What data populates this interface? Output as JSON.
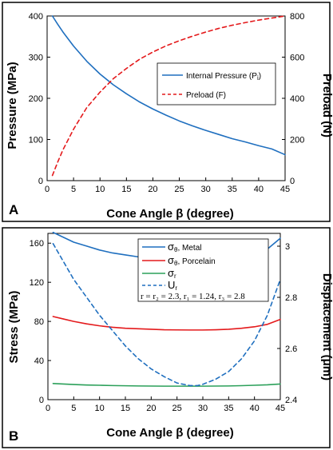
{
  "chart_data": [
    {
      "type": "line",
      "panel_label": "A",
      "xlabel": "Cone Angle β (degree)",
      "ylabel_left": "Pressure (MPa)",
      "ylabel_right": "Preload (N)",
      "xlim": [
        0,
        45
      ],
      "ylim_left": [
        0,
        400
      ],
      "ylim_right": [
        0,
        800
      ],
      "xticks": [
        "0",
        "5",
        "10",
        "15",
        "20",
        "25",
        "30",
        "35",
        "40",
        "45"
      ],
      "yticks_left": [
        "0",
        "100",
        "200",
        "300",
        "400"
      ],
      "yticks_right": [
        "0",
        "200",
        "400",
        "600",
        "800"
      ],
      "grid": false,
      "legend_position": "center-right",
      "x": [
        1,
        2,
        3,
        5,
        7.5,
        10,
        12.5,
        15,
        17.5,
        20,
        22.5,
        25,
        27.5,
        30,
        32.5,
        35,
        37.5,
        40,
        42.5,
        45
      ],
      "series": [
        {
          "name": "Internal Pressure (P",
          "name_sub": "i",
          "name_end": ")",
          "axis": "left",
          "style": "solid",
          "color": "#1f6fbf",
          "values": [
            400,
            380,
            361,
            327,
            290,
            259,
            233,
            211,
            191,
            174,
            159,
            145,
            133,
            122,
            112,
            102,
            94,
            85,
            77,
            63
          ]
        },
        {
          "name": "Preload (F)",
          "axis": "right",
          "style": "dashed",
          "color": "#e41a1c",
          "values": [
            25,
            90,
            150,
            250,
            355,
            430,
            495,
            545,
            590,
            625,
            655,
            680,
            702,
            722,
            740,
            755,
            768,
            780,
            790,
            800
          ]
        }
      ]
    },
    {
      "type": "line",
      "panel_label": "B",
      "xlabel": "Cone Angle β (degree)",
      "ylabel_left": "Stress (MPa)",
      "ylabel_right": "Displacement (μm)",
      "xlim": [
        0,
        45
      ],
      "ylim_left": [
        0,
        170
      ],
      "ylim_right": [
        2.4,
        3.05
      ],
      "xticks": [
        "0",
        "5",
        "10",
        "15",
        "20",
        "25",
        "30",
        "35",
        "40",
        "45"
      ],
      "yticks_left": [
        "0",
        "40",
        "80",
        "120",
        "160"
      ],
      "yticks_right": [
        "2.4",
        "2.6",
        "2.8",
        "3"
      ],
      "grid": false,
      "legend_position": "top-center",
      "legend_note": "r = r₂ = 2.3, r₁ = 1.24, r₃ = 2.8",
      "x": [
        1,
        3,
        5,
        7.5,
        10,
        12.5,
        15,
        17.5,
        20,
        22.5,
        25,
        27.5,
        29,
        30,
        32.5,
        35,
        37.5,
        40,
        42.5,
        45
      ],
      "series": [
        {
          "name": "σ",
          "name_sub": "θ",
          "name_end": ", Metal",
          "axis": "left",
          "style": "solid",
          "color": "#1f6fbf",
          "values": [
            171,
            166,
            161,
            157,
            153,
            150,
            148,
            146,
            144.5,
            143.5,
            143,
            142.5,
            142.5,
            142.5,
            143,
            144,
            146,
            149,
            154,
            165
          ]
        },
        {
          "name": "σ",
          "name_sub": "θ",
          "name_end": ", Porcelain",
          "axis": "left",
          "style": "solid",
          "color": "#e41a1c",
          "values": [
            85,
            82.5,
            80,
            77.5,
            75.5,
            74,
            73,
            72.5,
            72,
            71.5,
            71.3,
            71.2,
            71.2,
            71.2,
            71.5,
            72,
            73,
            74.5,
            77,
            82
          ]
        },
        {
          "name": "σ",
          "name_sub": "r",
          "name_end": "",
          "axis": "left",
          "style": "solid",
          "color": "#2ca05a",
          "values": [
            16.5,
            16,
            15.5,
            15,
            14.7,
            14.4,
            14.2,
            14,
            13.9,
            13.8,
            13.8,
            13.8,
            13.8,
            13.8,
            13.9,
            14,
            14.3,
            14.7,
            15.2,
            16
          ]
        },
        {
          "name": "U",
          "name_sub": "r",
          "name_end": "",
          "axis": "right",
          "style": "dashed",
          "color": "#1f6fbf",
          "values": [
            3.01,
            2.94,
            2.87,
            2.8,
            2.73,
            2.67,
            2.61,
            2.56,
            2.52,
            2.49,
            2.465,
            2.455,
            2.455,
            2.46,
            2.48,
            2.51,
            2.56,
            2.63,
            2.73,
            2.87
          ]
        }
      ]
    }
  ]
}
